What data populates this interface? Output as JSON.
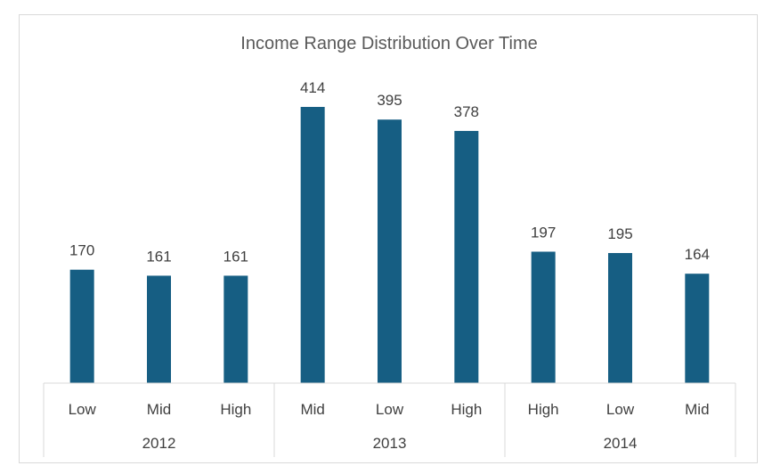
{
  "chart_data": {
    "type": "bar",
    "title": "Income Range Distribution Over Time",
    "xlabel": "",
    "ylabel": "",
    "ylim": [
      0,
      414
    ],
    "grid": false,
    "legend": "none",
    "bar_color": "#165e83",
    "groups": [
      {
        "label": "2012",
        "categories": [
          "Low",
          "Mid",
          "High"
        ],
        "values": [
          170,
          161,
          161
        ]
      },
      {
        "label": "2013",
        "categories": [
          "Mid",
          "Low",
          "High"
        ],
        "values": [
          414,
          395,
          378
        ]
      },
      {
        "label": "2014",
        "categories": [
          "High",
          "Low",
          "Mid"
        ],
        "values": [
          197,
          195,
          164
        ]
      }
    ]
  }
}
